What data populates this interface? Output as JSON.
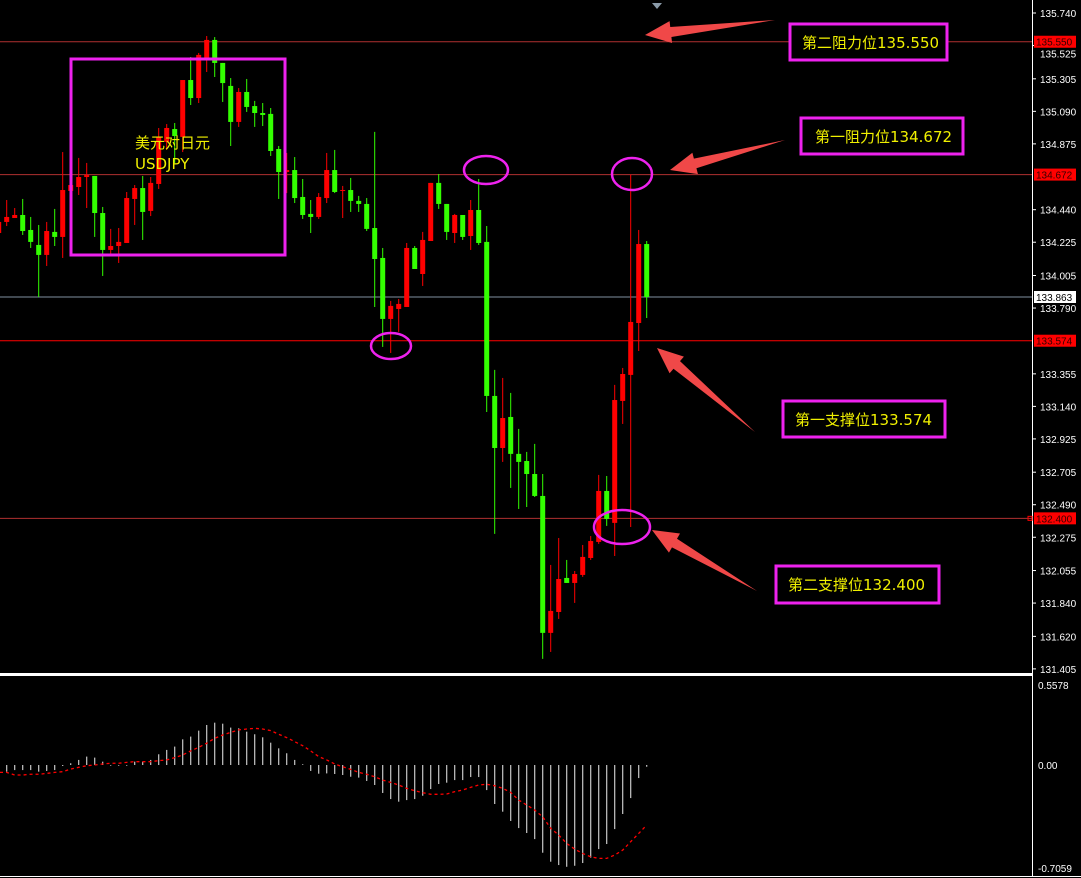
{
  "chart_data": {
    "type": "candlestick",
    "symbol_label": "美元对日元",
    "symbol_code": "USDJPY",
    "colors": {
      "bull": "#ff0000",
      "bear": "#33ff00",
      "background": "#000000",
      "annotation": "#ee22ee",
      "label_text": "#f0f000",
      "arrow": "#f04848"
    },
    "price_axis": {
      "range": [
        131.405,
        135.74
      ],
      "ticks": [
        "135.740",
        "135.525",
        "135.305",
        "135.090",
        "134.875",
        "134.440",
        "134.225",
        "134.005",
        "133.790",
        "133.355",
        "133.140",
        "132.925",
        "132.705",
        "132.490",
        "132.275",
        "132.055",
        "131.840",
        "131.620",
        "131.405"
      ]
    },
    "current_price": "133.863",
    "levels": [
      {
        "price": 135.55,
        "label": "135.550",
        "note": "第二阻力位135.550"
      },
      {
        "price": 134.672,
        "label": "134.672",
        "note": "第一阻力位134.672"
      },
      {
        "price": 133.574,
        "label": "133.574",
        "note": "第一支撑位133.574"
      },
      {
        "price": 132.4,
        "label": "132.400",
        "note": "第二支撑位132.400"
      }
    ],
    "candles_ohlc": [
      [
        134.286,
        134.372,
        134.266,
        134.359
      ],
      [
        134.359,
        134.504,
        134.332,
        134.392
      ],
      [
        134.385,
        134.451,
        134.385,
        134.405
      ],
      [
        134.405,
        134.511,
        134.273,
        134.299
      ],
      [
        134.306,
        134.392,
        134.187,
        134.227
      ],
      [
        134.207,
        134.339,
        133.863,
        134.141
      ],
      [
        134.141,
        134.359,
        134.068,
        134.299
      ],
      [
        134.293,
        134.445,
        134.2,
        134.26
      ],
      [
        134.26,
        134.821,
        134.121,
        134.57
      ],
      [
        134.564,
        134.636,
        134.537,
        134.603
      ],
      [
        134.59,
        134.782,
        134.537,
        134.656
      ],
      [
        134.656,
        134.749,
        134.451,
        134.669
      ],
      [
        134.663,
        134.663,
        134.26,
        134.418
      ],
      [
        134.418,
        134.458,
        134.002,
        134.174
      ],
      [
        134.174,
        134.313,
        134.147,
        134.2
      ],
      [
        134.2,
        134.319,
        134.088,
        134.227
      ],
      [
        134.22,
        134.557,
        134.22,
        134.517
      ],
      [
        134.511,
        134.603,
        134.339,
        134.583
      ],
      [
        134.583,
        134.663,
        134.24,
        134.425
      ],
      [
        134.432,
        134.656,
        134.398,
        134.617
      ],
      [
        134.61,
        134.98,
        134.577,
        134.921
      ],
      [
        134.888,
        135.006,
        134.835,
        134.98
      ],
      [
        134.973,
        135.013,
        134.749,
        134.927
      ],
      [
        134.921,
        135.297,
        134.821,
        135.297
      ],
      [
        135.297,
        135.449,
        135.132,
        135.178
      ],
      [
        135.178,
        135.476,
        135.145,
        135.463
      ],
      [
        135.443,
        135.588,
        135.35,
        135.562
      ],
      [
        135.562,
        135.581,
        135.317,
        135.41
      ],
      [
        135.41,
        135.41,
        135.152,
        135.277
      ],
      [
        135.258,
        135.31,
        134.861,
        135.02
      ],
      [
        135.02,
        135.244,
        134.987,
        135.218
      ],
      [
        135.218,
        135.304,
        135.086,
        135.119
      ],
      [
        135.125,
        135.159,
        134.987,
        135.079
      ],
      [
        135.079,
        135.145,
        134.993,
        135.066
      ],
      [
        135.073,
        135.112,
        134.795,
        134.828
      ],
      [
        134.841,
        134.861,
        134.511,
        134.689
      ],
      [
        134.689,
        134.815,
        134.55,
        134.702
      ],
      [
        134.702,
        134.788,
        134.484,
        134.517
      ],
      [
        134.524,
        134.643,
        134.379,
        134.405
      ],
      [
        134.412,
        134.504,
        134.286,
        134.392
      ],
      [
        134.392,
        134.55,
        134.379,
        134.524
      ],
      [
        134.517,
        134.815,
        134.484,
        134.702
      ],
      [
        134.702,
        134.835,
        134.55,
        134.557
      ],
      [
        134.564,
        134.597,
        134.385,
        134.57
      ],
      [
        134.57,
        134.65,
        134.425,
        134.498
      ],
      [
        134.498,
        134.531,
        134.425,
        134.478
      ],
      [
        134.478,
        134.517,
        134.299,
        134.313
      ],
      [
        134.319,
        134.954,
        133.797,
        134.114
      ],
      [
        134.121,
        134.187,
        133.533,
        133.718
      ],
      [
        133.718,
        133.837,
        133.493,
        133.804
      ],
      [
        133.784,
        133.85,
        133.632,
        133.817
      ],
      [
        133.797,
        134.22,
        133.797,
        134.187
      ],
      [
        134.187,
        134.2,
        134.048,
        134.048
      ],
      [
        134.015,
        134.293,
        133.936,
        134.24
      ],
      [
        134.233,
        134.617,
        134.233,
        134.617
      ],
      [
        134.617,
        134.676,
        134.445,
        134.478
      ],
      [
        134.478,
        134.478,
        134.24,
        134.293
      ],
      [
        134.286,
        134.412,
        134.22,
        134.405
      ],
      [
        134.405,
        134.405,
        134.24,
        134.26
      ],
      [
        134.266,
        134.504,
        134.174,
        134.438
      ],
      [
        134.438,
        134.643,
        134.207,
        134.22
      ],
      [
        134.227,
        134.332,
        133.103,
        133.209
      ],
      [
        133.209,
        133.381,
        132.297,
        132.865
      ],
      [
        132.865,
        133.328,
        132.773,
        133.063
      ],
      [
        133.07,
        133.229,
        132.601,
        132.826
      ],
      [
        132.826,
        132.991,
        132.462,
        132.773
      ],
      [
        132.779,
        132.839,
        132.475,
        132.693
      ],
      [
        132.693,
        132.892,
        132.541,
        132.548
      ],
      [
        132.548,
        132.693,
        131.471,
        131.643
      ],
      [
        131.643,
        132.092,
        131.517,
        131.788
      ],
      [
        131.781,
        132.27,
        131.735,
        131.999
      ],
      [
        132.006,
        132.125,
        131.973,
        131.973
      ],
      [
        131.973,
        132.052,
        131.841,
        132.032
      ],
      [
        132.026,
        132.224,
        132.013,
        132.145
      ],
      [
        132.138,
        132.283,
        132.125,
        132.25
      ],
      [
        132.244,
        132.687,
        132.231,
        132.581
      ],
      [
        132.581,
        132.68,
        132.35,
        132.396
      ],
      [
        132.37,
        133.282,
        132.151,
        133.182
      ],
      [
        133.176,
        133.394,
        133.024,
        133.354
      ],
      [
        133.348,
        134.672,
        132.343,
        133.698
      ],
      [
        133.691,
        134.306,
        133.506,
        134.213
      ],
      [
        134.213,
        134.233,
        133.724,
        133.863
      ]
    ],
    "indicator": {
      "type": "macd",
      "range": [
        -0.7059,
        0.5578
      ],
      "ticks": [
        "0.5578",
        "0.00",
        "-0.7059"
      ],
      "histogram": [
        -0.046,
        -0.035,
        -0.035,
        -0.035,
        -0.046,
        -0.041,
        -0.035,
        0,
        0.012,
        0.035,
        0.058,
        0.051,
        0.023,
        -0.005,
        -0.005,
        -0.005,
        0.023,
        0.023,
        0.035,
        0.074,
        0.104,
        0.127,
        0.177,
        0.196,
        0.237,
        0.276,
        0.292,
        0.285,
        0.258,
        0.253,
        0.23,
        0.212,
        0.191,
        0.154,
        0.115,
        0.081,
        0.035,
        0.005,
        -0.041,
        -0.06,
        -0.058,
        -0.062,
        -0.069,
        -0.081,
        -0.087,
        -0.11,
        -0.138,
        -0.193,
        -0.235,
        -0.253,
        -0.242,
        -0.235,
        -0.212,
        -0.166,
        -0.131,
        -0.122,
        -0.104,
        -0.104,
        -0.083,
        -0.083,
        -0.173,
        -0.269,
        -0.322,
        -0.386,
        -0.435,
        -0.469,
        -0.511,
        -0.605,
        -0.667,
        -0.69,
        -0.702,
        -0.695,
        -0.676,
        -0.639,
        -0.58,
        -0.545,
        -0.442,
        -0.338,
        -0.228,
        -0.09,
        -0.012
      ],
      "signal": [
        -0.051,
        -0.069,
        -0.069,
        -0.064,
        -0.064,
        -0.058,
        -0.051,
        -0.046,
        -0.028,
        -0.016,
        -0.005,
        0,
        0.007,
        0.012,
        0.012,
        0.018,
        0.023,
        0.023,
        0.023,
        0.03,
        0.035,
        0.051,
        0.069,
        0.097,
        0.122,
        0.15,
        0.184,
        0.207,
        0.225,
        0.242,
        0.248,
        0.253,
        0.248,
        0.237,
        0.212,
        0.189,
        0.161,
        0.133,
        0.097,
        0.058,
        0.035,
        0.007,
        -0.012,
        -0.03,
        -0.051,
        -0.064,
        -0.081,
        -0.104,
        -0.12,
        -0.138,
        -0.161,
        -0.177,
        -0.191,
        -0.202,
        -0.202,
        -0.2,
        -0.184,
        -0.173,
        -0.154,
        -0.138,
        -0.133,
        -0.143,
        -0.161,
        -0.189,
        -0.242,
        -0.276,
        -0.311,
        -0.357,
        -0.437,
        -0.483,
        -0.541,
        -0.58,
        -0.61,
        -0.633,
        -0.644,
        -0.644,
        -0.621,
        -0.587,
        -0.529,
        -0.472,
        -0.414
      ],
      "histogram_color": "#c8c8c8",
      "signal_color": "#ff0000"
    }
  }
}
